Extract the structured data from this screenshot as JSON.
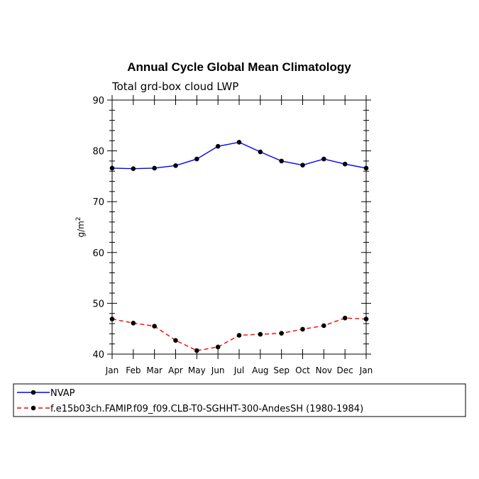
{
  "chart_data": {
    "type": "line",
    "title": "Annual Cycle Global Mean Climatology",
    "subtitle": "Total grd-box cloud LWP",
    "ylabel_base": "g/m",
    "ylabel_sup": "2",
    "categories": [
      "Jan",
      "Feb",
      "Mar",
      "Apr",
      "May",
      "Jun",
      "Jul",
      "Aug",
      "Sep",
      "Oct",
      "Nov",
      "Dec",
      "Jan"
    ],
    "ylim": [
      40,
      90
    ],
    "yticks": [
      40,
      50,
      60,
      70,
      80,
      90
    ],
    "series": [
      {
        "name": "NVAP",
        "color": "#0000ff",
        "dash": "solid",
        "values": [
          76.6,
          76.5,
          76.6,
          77.1,
          78.4,
          80.9,
          81.7,
          79.8,
          78.0,
          77.2,
          78.4,
          77.4,
          76.6
        ]
      },
      {
        "name": "f.e15b03ch.FAMIP.f09_f09.CLB-T0-SGHHT-300-AndesSH (1980-1984)",
        "color": "#ff0000",
        "dash": "dashed",
        "values": [
          46.9,
          46.1,
          45.5,
          42.7,
          40.7,
          41.4,
          43.7,
          43.9,
          44.1,
          44.9,
          45.6,
          47.1,
          46.9
        ]
      }
    ],
    "legend_position": "bottom",
    "grid": false
  }
}
